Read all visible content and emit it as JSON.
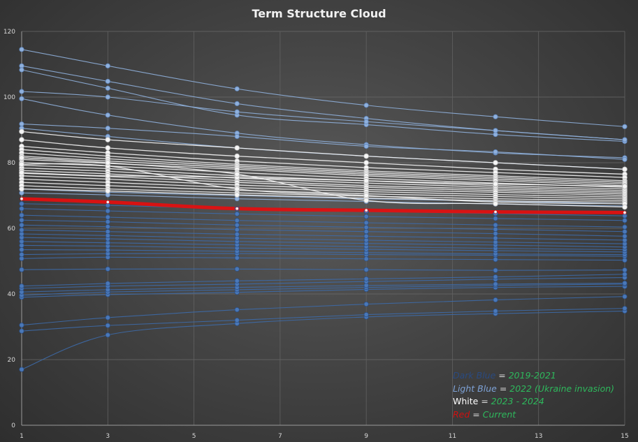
{
  "chart_data": {
    "type": "line",
    "title": "Term Structure Cloud",
    "xlabel": "",
    "ylabel": "",
    "x_ticks": [
      1,
      3,
      5,
      7,
      9,
      11,
      13,
      15
    ],
    "y_ticks": [
      0,
      20,
      40,
      60,
      80,
      100,
      120
    ],
    "xlim": [
      1,
      15
    ],
    "ylim": [
      0,
      120
    ],
    "x": [
      1,
      3,
      6,
      9,
      12,
      15
    ],
    "colors": {
      "dark_blue": "#3d6aa8",
      "light_blue": "#8fb0dc",
      "white": "#f4f4f4",
      "red": "#e01010"
    },
    "series": [
      {
        "group": "dark_blue",
        "values": [
          17.0,
          27.5,
          31.0,
          33.0,
          34.0,
          34.8
        ]
      },
      {
        "group": "dark_blue",
        "values": [
          28.7,
          30.4,
          32.0,
          33.7,
          34.8,
          35.6
        ]
      },
      {
        "group": "dark_blue",
        "values": [
          30.5,
          32.8,
          35.2,
          36.9,
          38.2,
          39.2
        ]
      },
      {
        "group": "dark_blue",
        "values": [
          39.0,
          39.8,
          40.5,
          41.4,
          42.0,
          42.3
        ]
      },
      {
        "group": "dark_blue",
        "values": [
          39.6,
          40.6,
          41.3,
          42.0,
          42.6,
          43.0
        ]
      },
      {
        "group": "dark_blue",
        "values": [
          40.6,
          41.3,
          42.0,
          42.6,
          43.0,
          43.3
        ]
      },
      {
        "group": "dark_blue",
        "values": [
          41.7,
          42.4,
          43.0,
          43.8,
          44.5,
          45.0
        ]
      },
      {
        "group": "dark_blue",
        "values": [
          42.4,
          43.2,
          44.0,
          44.6,
          45.2,
          46.0
        ]
      },
      {
        "group": "dark_blue",
        "values": [
          47.4,
          47.6,
          47.6,
          47.4,
          47.2,
          47.3
        ]
      },
      {
        "group": "dark_blue",
        "values": [
          50.8,
          51.2,
          51.0,
          50.7,
          50.5,
          50.3
        ]
      },
      {
        "group": "dark_blue",
        "values": [
          52.0,
          52.3,
          52.3,
          52.0,
          51.8,
          51.5
        ]
      },
      {
        "group": "dark_blue",
        "values": [
          53.5,
          53.4,
          53.0,
          52.6,
          52.2,
          52.0
        ]
      },
      {
        "group": "dark_blue",
        "values": [
          54.8,
          54.6,
          54.0,
          53.6,
          53.2,
          52.8
        ]
      },
      {
        "group": "dark_blue",
        "values": [
          56.0,
          55.6,
          55.0,
          54.4,
          53.9,
          53.5
        ]
      },
      {
        "group": "dark_blue",
        "values": [
          57.2,
          56.8,
          56.0,
          55.4,
          54.9,
          54.3
        ]
      },
      {
        "group": "dark_blue",
        "values": [
          58.3,
          57.8,
          57.0,
          56.4,
          55.8,
          55.3
        ]
      },
      {
        "group": "dark_blue",
        "values": [
          59.5,
          59.0,
          58.2,
          57.6,
          57.0,
          56.4
        ]
      },
      {
        "group": "dark_blue",
        "values": [
          61.0,
          60.5,
          59.6,
          59.0,
          58.4,
          57.6
        ]
      },
      {
        "group": "dark_blue",
        "values": [
          62.5,
          62.0,
          61.0,
          60.3,
          59.7,
          59.0
        ]
      },
      {
        "group": "dark_blue",
        "values": [
          64.0,
          63.4,
          62.4,
          61.7,
          61.0,
          60.4
        ]
      },
      {
        "group": "dark_blue",
        "values": [
          66.0,
          65.3,
          64.4,
          63.6,
          63.0,
          62.4
        ]
      },
      {
        "group": "dark_blue",
        "values": [
          67.5,
          67.0,
          66.0,
          65.2,
          64.5,
          63.8
        ]
      },
      {
        "group": "light_blue",
        "values": [
          114.5,
          109.5,
          102.5,
          97.5,
          94.0,
          91.0
        ]
      },
      {
        "group": "light_blue",
        "values": [
          109.5,
          104.8,
          98.0,
          93.5,
          89.8,
          87.0
        ]
      },
      {
        "group": "light_blue",
        "values": [
          108.3,
          102.7,
          94.5,
          91.6,
          88.6,
          86.5
        ]
      },
      {
        "group": "light_blue",
        "values": [
          101.7,
          100.0,
          95.5,
          92.5,
          89.8,
          87.0
        ]
      },
      {
        "group": "light_blue",
        "values": [
          99.5,
          94.5,
          89.0,
          85.5,
          83.0,
          81.5
        ]
      },
      {
        "group": "light_blue",
        "values": [
          91.8,
          90.5,
          88.0,
          85.0,
          83.3,
          81.0
        ]
      },
      {
        "group": "light_blue",
        "values": [
          90.5,
          88.0,
          84.5,
          82.0,
          80.0,
          78.0
        ]
      },
      {
        "group": "light_blue",
        "values": [
          72.0,
          71.0,
          70.0,
          69.0,
          68.3,
          67.5
        ]
      },
      {
        "group": "light_blue",
        "values": [
          70.8,
          70.2,
          69.0,
          68.2,
          67.4,
          66.8
        ]
      },
      {
        "group": "white",
        "values": [
          89.5,
          87.0,
          84.5,
          82.0,
          80.0,
          78.0
        ]
      },
      {
        "group": "white",
        "values": [
          87.0,
          84.5,
          82.0,
          80.0,
          78.0,
          76.5
        ]
      },
      {
        "group": "white",
        "values": [
          85.0,
          83.0,
          80.5,
          78.5,
          77.0,
          75.5
        ]
      },
      {
        "group": "white",
        "values": [
          84.0,
          82.0,
          79.5,
          77.5,
          76.0,
          74.5
        ]
      },
      {
        "group": "white",
        "values": [
          83.0,
          81.2,
          79.0,
          77.0,
          75.5,
          74.0
        ]
      },
      {
        "group": "white",
        "values": [
          82.0,
          80.5,
          78.5,
          76.5,
          75.0,
          73.5
        ]
      },
      {
        "group": "white",
        "values": [
          81.0,
          79.8,
          78.0,
          76.0,
          74.5,
          73.0
        ]
      },
      {
        "group": "white",
        "values": [
          80.0,
          79.0,
          77.0,
          75.2,
          73.8,
          72.5
        ]
      },
      {
        "group": "white",
        "values": [
          79.2,
          78.2,
          76.0,
          74.5,
          73.0,
          72.0
        ]
      },
      {
        "group": "white",
        "values": [
          78.4,
          77.4,
          75.3,
          73.8,
          72.5,
          71.5
        ]
      },
      {
        "group": "white",
        "values": [
          77.6,
          76.6,
          74.6,
          73.0,
          72.0,
          71.0
        ]
      },
      {
        "group": "white",
        "values": [
          76.8,
          75.8,
          74.0,
          72.5,
          71.5,
          70.5
        ]
      },
      {
        "group": "white",
        "values": [
          76.0,
          75.0,
          73.2,
          71.8,
          71.0,
          70.0
        ]
      },
      {
        "group": "white",
        "values": [
          75.0,
          74.0,
          72.4,
          71.2,
          70.3,
          69.5
        ]
      },
      {
        "group": "white",
        "values": [
          74.0,
          73.0,
          71.6,
          70.5,
          69.7,
          69.0
        ]
      },
      {
        "group": "white",
        "values": [
          73.0,
          72.0,
          70.8,
          69.8,
          69.0,
          68.5
        ]
      },
      {
        "group": "white",
        "values": [
          72.0,
          71.4,
          70.2,
          69.2,
          68.4,
          68.0
        ]
      },
      {
        "group": "white",
        "values": [
          79.5,
          79.0,
          72.0,
          70.0,
          68.0,
          67.5
        ]
      },
      {
        "group": "white",
        "values": [
          77.0,
          76.0,
          75.5,
          74.5,
          73.5,
          72.8
        ]
      },
      {
        "group": "white",
        "values": [
          81.5,
          80.0,
          76.5,
          68.5,
          67.5,
          66.5
        ]
      },
      {
        "group": "red",
        "values": [
          69.0,
          68.0,
          66.0,
          65.5,
          65.0,
          64.8
        ]
      }
    ]
  },
  "legend": [
    {
      "label": "Dark Blue",
      "equals": " = ",
      "range": "2019-2021",
      "color": "#2a4a80"
    },
    {
      "label": "Light Blue",
      "equals": " = ",
      "range": "2022 (Ukraine invasion)",
      "color": "#7ea2d6"
    },
    {
      "label": "White",
      "equals": " = ",
      "range": "2023 - 2024",
      "color": "#ffffff"
    },
    {
      "label": "Red",
      "equals": " = ",
      "range": "Current",
      "color": "#d01010"
    }
  ]
}
